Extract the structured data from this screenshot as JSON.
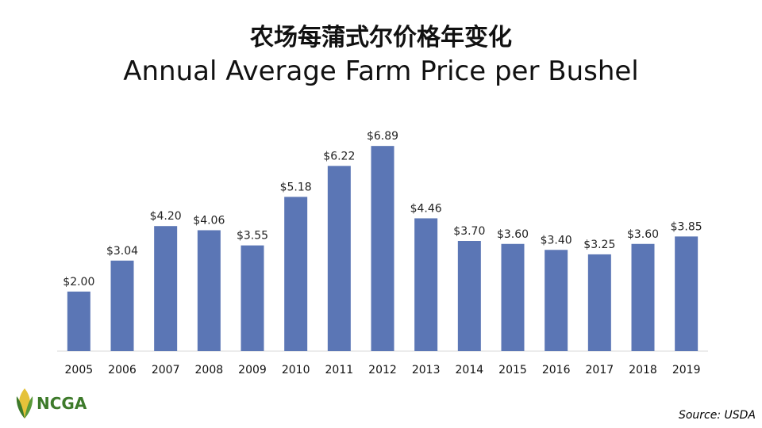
{
  "header": {
    "title_cn": "农场每蒲式尔价格年变化",
    "title_en": "Annual Average Farm Price per Bushel"
  },
  "chart_data": {
    "type": "bar",
    "categories": [
      "2005",
      "2006",
      "2007",
      "2008",
      "2009",
      "2010",
      "2011",
      "2012",
      "2013",
      "2014",
      "2015",
      "2016",
      "2017",
      "2018",
      "2019"
    ],
    "values": [
      2.0,
      3.04,
      4.2,
      4.06,
      3.55,
      5.18,
      6.22,
      6.89,
      4.46,
      3.7,
      3.6,
      3.4,
      3.25,
      3.6,
      3.85
    ],
    "data_labels": [
      "$2.00",
      "$3.04",
      "$4.20",
      "$4.06",
      "$3.55",
      "$5.18",
      "$6.22",
      "$6.89",
      "$4.46",
      "$3.70",
      "$3.60",
      "$3.40",
      "$3.25",
      "$3.60",
      "$3.85"
    ],
    "title": "Annual Average Farm Price per Bushel",
    "xlabel": "",
    "ylabel": "",
    "ylim": [
      0,
      7.4
    ],
    "grid": false,
    "bar_color": "#5b76b5"
  },
  "footer": {
    "logo_text": "NCGA",
    "source": "Source: USDA"
  },
  "colors": {
    "bar": "#5b76b5",
    "logo_green": "#3d7a2a",
    "logo_yellow": "#e5c23a"
  }
}
